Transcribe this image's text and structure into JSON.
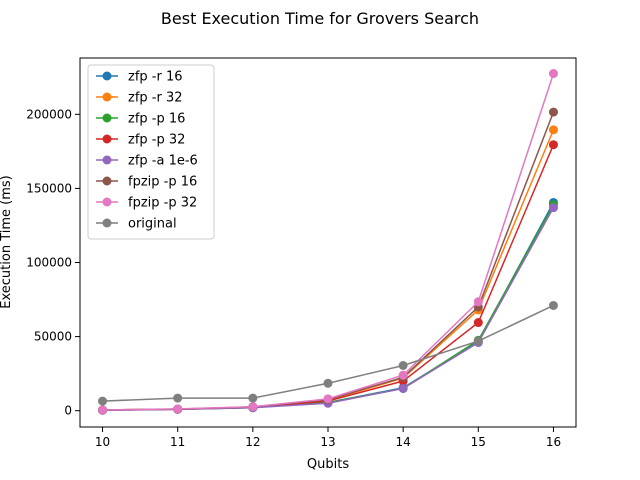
{
  "chart_data": {
    "type": "line",
    "title": "Best Execution Time for Grovers Search",
    "xlabel": "Qubits",
    "ylabel": "Execution Time (ms)",
    "x": [
      10,
      11,
      12,
      13,
      14,
      15,
      16
    ],
    "xlim": [
      9.7,
      16.3
    ],
    "ylim": [
      -11000,
      238000
    ],
    "xticks": [
      10,
      11,
      12,
      13,
      14,
      15,
      16
    ],
    "yticks": [
      0,
      50000,
      100000,
      150000,
      200000
    ],
    "grid": false,
    "legend_position": "upper-left",
    "series": [
      {
        "name": "zfp -r 16",
        "color": "#1f77b4",
        "values": [
          300,
          1000,
          2100,
          5500,
          15500,
          46500,
          140500
        ]
      },
      {
        "name": "zfp -r 32",
        "color": "#ff7f0e",
        "values": [
          500,
          1100,
          2500,
          7000,
          22000,
          68000,
          189500
        ]
      },
      {
        "name": "zfp -p 16",
        "color": "#2ca02c",
        "values": [
          300,
          1000,
          2100,
          5500,
          15000,
          47500,
          139000
        ]
      },
      {
        "name": "zfp -p 32",
        "color": "#d62728",
        "values": [
          400,
          1000,
          2200,
          6500,
          20000,
          59500,
          179500
        ]
      },
      {
        "name": "zfp -a 1e-6",
        "color": "#9467bd",
        "values": [
          300,
          900,
          2000,
          5000,
          15000,
          46000,
          137000
        ]
      },
      {
        "name": "fpzip -p 16",
        "color": "#8c564b",
        "values": [
          500,
          1100,
          2600,
          7500,
          22500,
          70000,
          201500
        ]
      },
      {
        "name": "fpzip -p 32",
        "color": "#e377c2",
        "values": [
          500,
          1200,
          2700,
          8000,
          24000,
          73500,
          227500
        ]
      },
      {
        "name": "original",
        "color": "#7f7f7f",
        "values": [
          6500,
          8500,
          8500,
          18500,
          30500,
          47000,
          71000
        ]
      }
    ]
  }
}
